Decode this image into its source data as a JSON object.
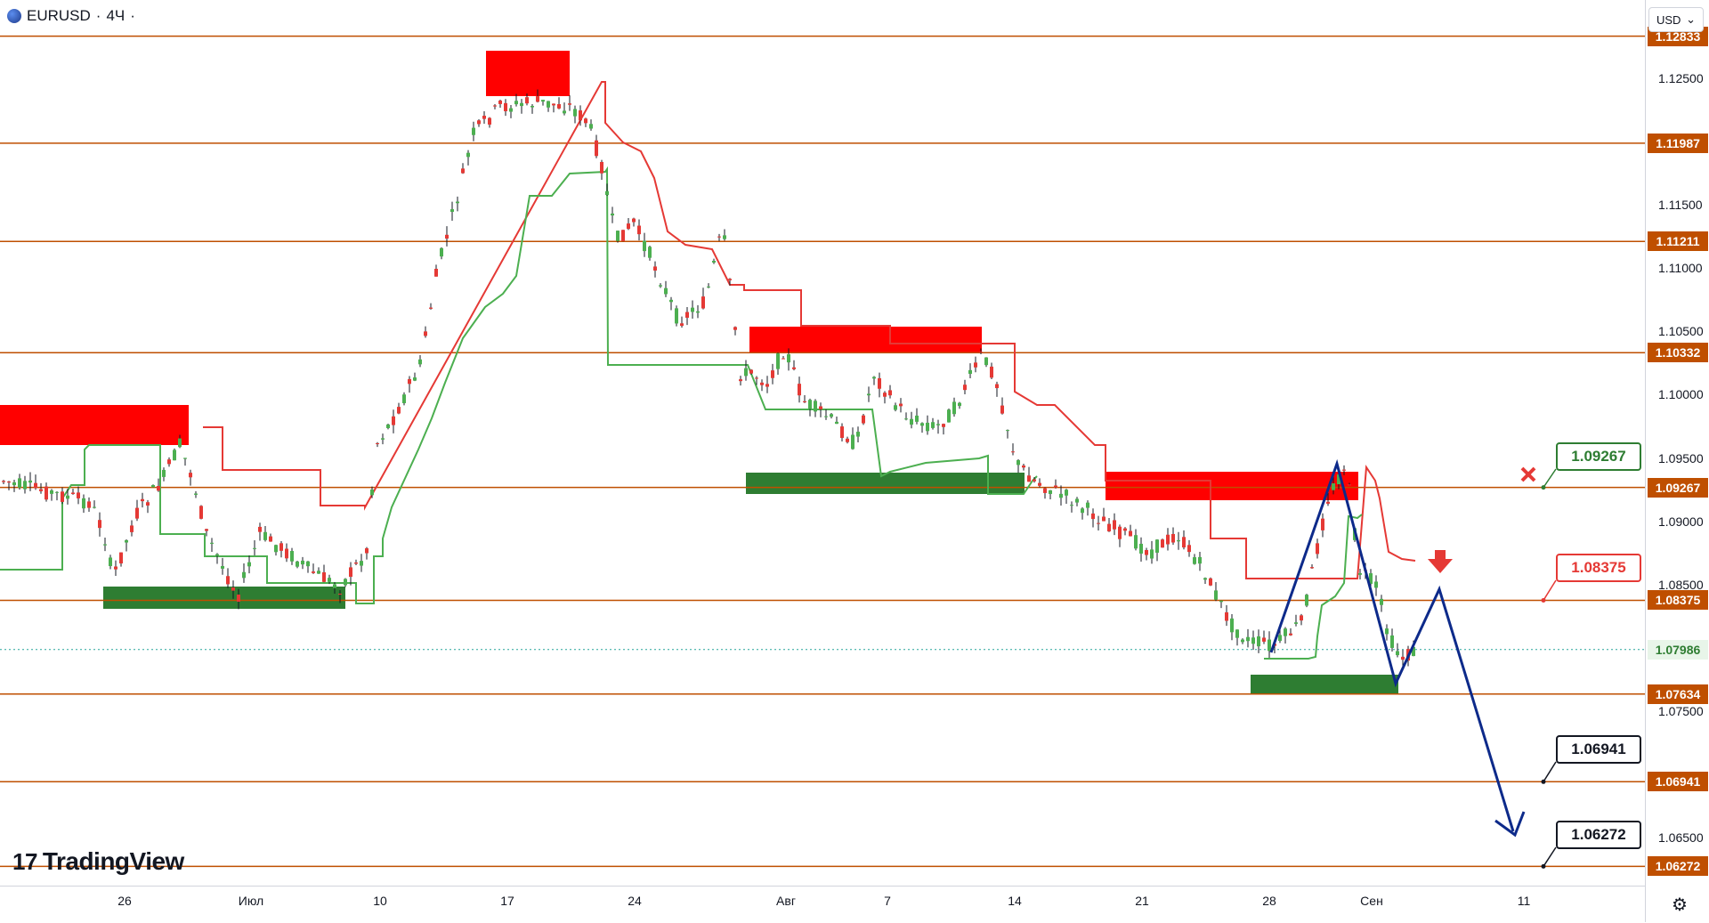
{
  "header": {
    "symbol": "EURUSD",
    "separator": "·",
    "timeframe": "4Ч",
    "dot": "·"
  },
  "currency": {
    "label": "USD",
    "chevron": "⌄"
  },
  "price_axis": {
    "ticks": [
      {
        "label": "1.12500",
        "value": 1.125
      },
      {
        "label": "1.11500",
        "value": 1.115
      },
      {
        "label": "1.11000",
        "value": 1.11
      },
      {
        "label": "1.10500",
        "value": 1.105
      },
      {
        "label": "1.10000",
        "value": 1.1
      },
      {
        "label": "1.09500",
        "value": 1.095
      },
      {
        "label": "1.09000",
        "value": 1.09
      },
      {
        "label": "1.08500",
        "value": 1.085
      },
      {
        "label": "1.07500",
        "value": 1.075
      },
      {
        "label": "1.06500",
        "value": 1.065
      }
    ],
    "levels": [
      {
        "label": "1.12833",
        "value": 1.12833
      },
      {
        "label": "1.11987",
        "value": 1.11987
      },
      {
        "label": "1.11211",
        "value": 1.11211
      },
      {
        "label": "1.10332",
        "value": 1.10332
      },
      {
        "label": "1.09267",
        "value": 1.09267
      },
      {
        "label": "1.08375",
        "value": 1.08375
      },
      {
        "label": "1.07634",
        "value": 1.07634
      },
      {
        "label": "1.06941",
        "value": 1.06941
      },
      {
        "label": "1.06272",
        "value": 1.06272
      }
    ],
    "current": {
      "label": "1.07986",
      "value": 1.07986
    }
  },
  "time_axis": [
    {
      "label": "26"
    },
    {
      "label": "Июл"
    },
    {
      "label": "10"
    },
    {
      "label": "17"
    },
    {
      "label": "24"
    },
    {
      "label": "Авг"
    },
    {
      "label": "7"
    },
    {
      "label": "14"
    },
    {
      "label": "21"
    },
    {
      "label": "28"
    },
    {
      "label": "Сен"
    },
    {
      "label": "11"
    }
  ],
  "callouts": {
    "stop": {
      "label": "1.09267",
      "color": "#2e7d32"
    },
    "entry": {
      "label": "1.08375",
      "color": "#e53935"
    },
    "target1": {
      "label": "1.06941",
      "color": "#131722"
    },
    "target2": {
      "label": "1.06272",
      "color": "#131722"
    }
  },
  "logo": {
    "text": "TradingView",
    "mark": "17"
  },
  "colors": {
    "level_line": "#bf4f00",
    "bull": "#4caf50",
    "bear": "#e53935",
    "candle": "#131722",
    "zone_red": "#ff0000",
    "zone_green": "#2e7d32",
    "projection": "#0d2a8a"
  },
  "icons": {
    "settings": "gear-icon",
    "cancel": "x-mark-icon",
    "sell": "down-arrow-icon"
  }
}
